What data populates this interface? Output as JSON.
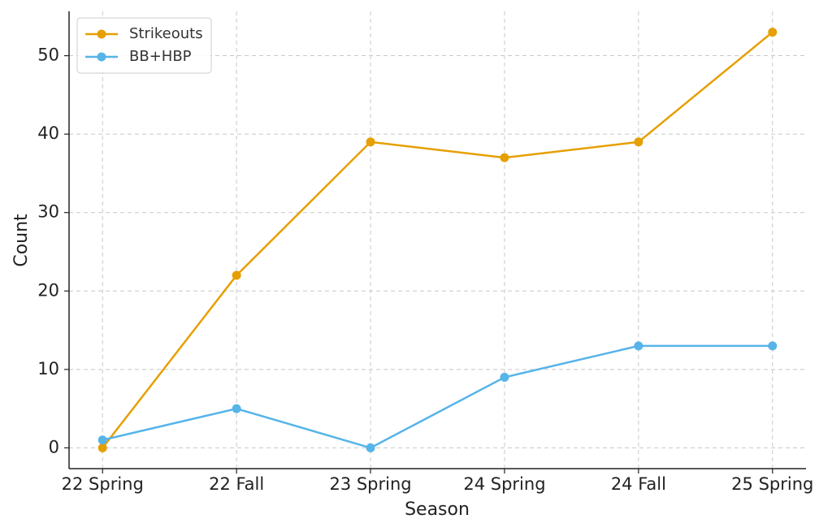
{
  "chart_data": {
    "type": "line",
    "x_label": "Season",
    "y_label": "Count",
    "categories": [
      "22 Spring",
      "22 Fall",
      "23 Spring",
      "24 Spring",
      "24 Fall",
      "25 Spring"
    ],
    "series": [
      {
        "name": "Strikeouts",
        "color": "#e69f00",
        "values": [
          0,
          22,
          39,
          37,
          39,
          53
        ]
      },
      {
        "name": "BB+HBP",
        "color": "#56b4e9",
        "values": [
          1,
          5,
          0,
          9,
          13,
          13
        ]
      }
    ],
    "ylim": [
      -2.65,
      55.65
    ],
    "yticks": [
      0,
      10,
      20,
      30,
      40,
      50
    ],
    "grid": true,
    "legend": "upper left"
  }
}
